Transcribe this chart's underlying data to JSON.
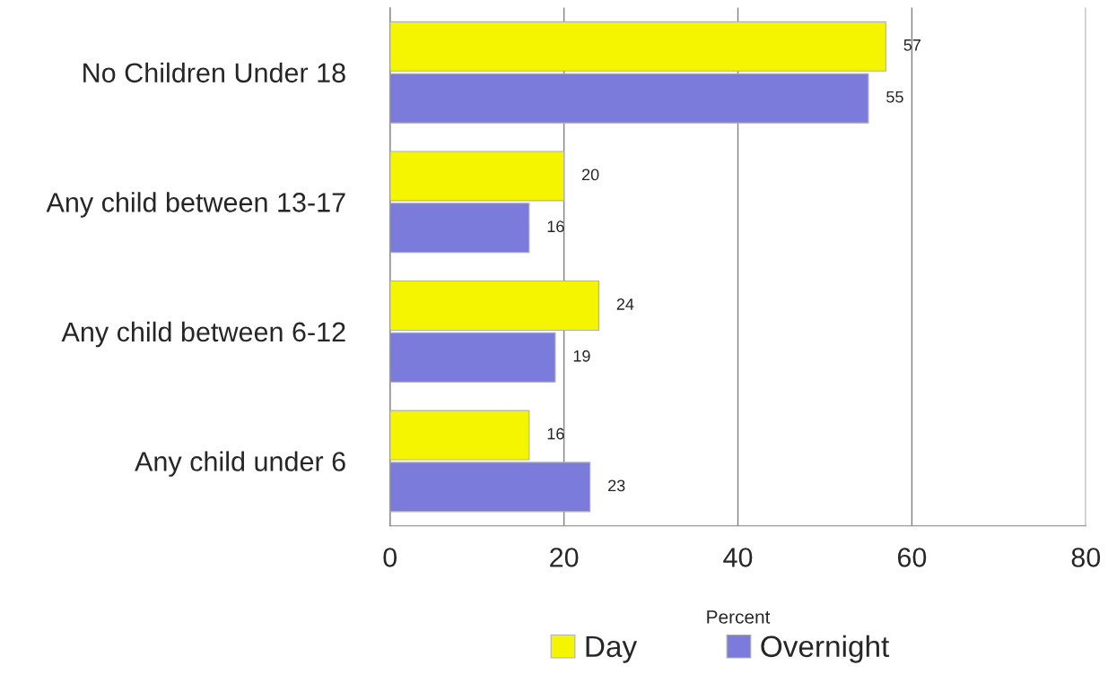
{
  "chart_data": {
    "type": "bar",
    "orientation": "horizontal",
    "xlabel": "Percent",
    "categories": [
      "No Children Under 18",
      "Any child between 13-17",
      "Any child between 6-12",
      "Any child under 6"
    ],
    "series": [
      {
        "name": "Day",
        "color": "#f5f500",
        "values": [
          57,
          20,
          24,
          16
        ]
      },
      {
        "name": "Overnight",
        "color": "#7b7bdb",
        "values": [
          55,
          16,
          19,
          23
        ]
      }
    ],
    "xlim": [
      0,
      80
    ],
    "xticks": [
      0,
      20,
      40,
      60,
      80
    ],
    "grid": "x",
    "legend": "bottom",
    "data_labels": true
  }
}
